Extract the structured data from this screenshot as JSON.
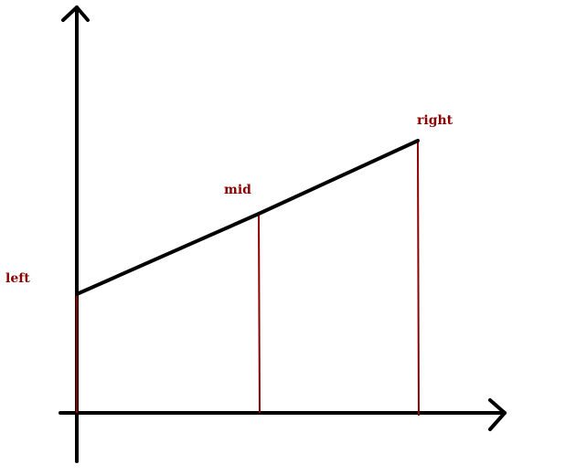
{
  "diagram": {
    "labels": {
      "left": "left",
      "mid": "mid",
      "right": "right"
    },
    "colors": {
      "axis": "#000000",
      "line": "#000000",
      "vertical": "#8b0000",
      "label": "#8b0000"
    }
  }
}
